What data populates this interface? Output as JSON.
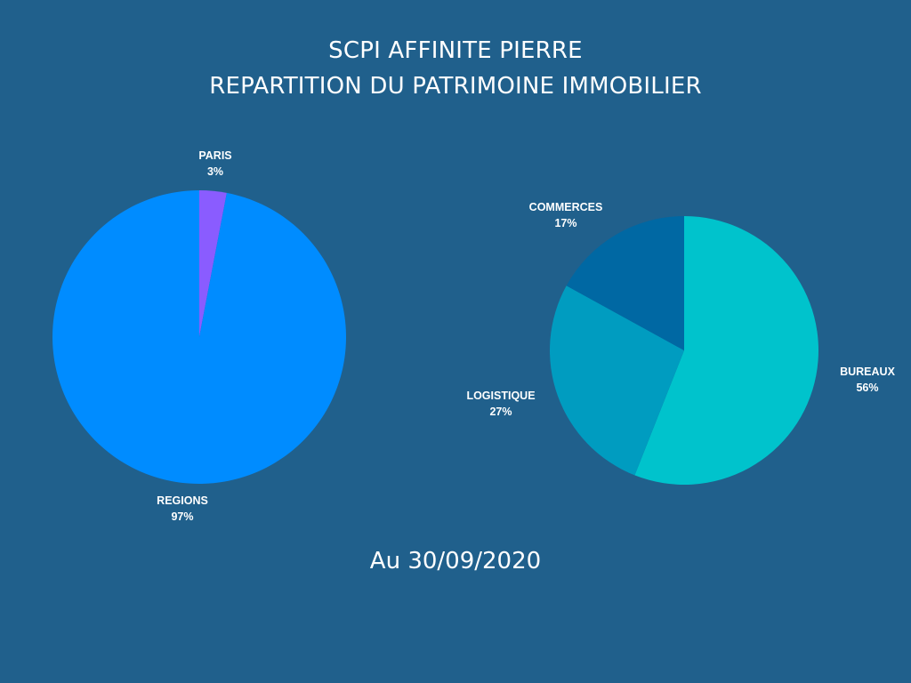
{
  "header": {
    "title_line1": "SCPI AFFINITE PIERRE",
    "title_line2": "REPARTITION DU PATRIMOINE IMMOBILIER"
  },
  "footer": {
    "date_text": "Au 30/09/2020"
  },
  "colors": {
    "background": "#20608c"
  },
  "chart_data": [
    {
      "type": "pie",
      "title": "",
      "slices": [
        {
          "label": "PARIS",
          "value": 3,
          "value_label": "3%",
          "color": "#8a5cff"
        },
        {
          "label": "REGIONS",
          "value": 97,
          "value_label": "97%",
          "color": "#008cff"
        }
      ]
    },
    {
      "type": "pie",
      "title": "",
      "slices": [
        {
          "label": "BUREAUX",
          "value": 56,
          "value_label": "56%",
          "color": "#00c3cc"
        },
        {
          "label": "LOGISTIQUE",
          "value": 27,
          "value_label": "27%",
          "color": "#009cc0"
        },
        {
          "label": "COMMERCES",
          "value": 17,
          "value_label": "17%",
          "color": "#0068a3"
        }
      ]
    }
  ]
}
